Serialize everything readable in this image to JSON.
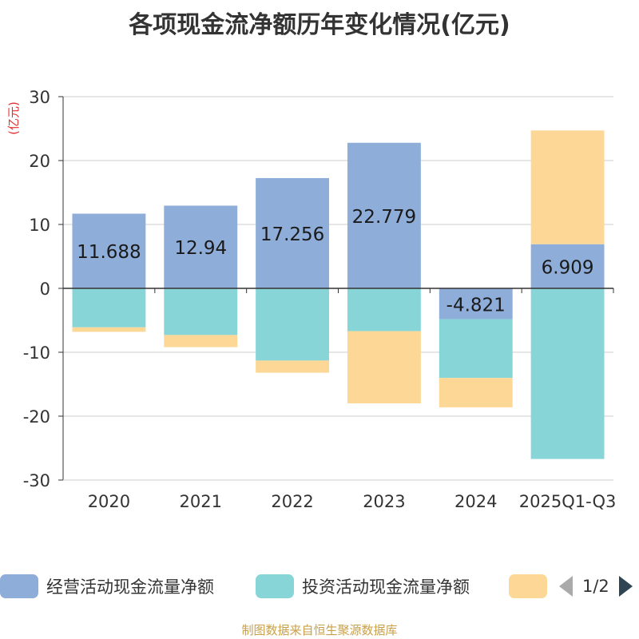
{
  "title": "各项现金流净额历年变化情况(亿元)",
  "source": "制图数据来自恒生聚源数据库",
  "legend": {
    "items": [
      {
        "label": "经营活动现金流量净额",
        "color": "#8eadd9"
      },
      {
        "label": "投资活动现金流量净额",
        "color": "#88d5d8"
      },
      {
        "label": "",
        "color": "#fdd796"
      }
    ],
    "page": "1/2"
  },
  "chart_data": {
    "type": "bar",
    "stacked": true,
    "ylabel": "(亿元)",
    "ylim": [
      -30,
      30
    ],
    "yticks": [
      -30,
      -20,
      -10,
      0,
      10,
      20,
      30
    ],
    "categories": [
      "2020",
      "2021",
      "2022",
      "2023",
      "2024",
      "2025Q1-Q3"
    ],
    "series": [
      {
        "name": "经营活动现金流量净额",
        "color": "#8eadd9",
        "values": [
          11.688,
          12.94,
          17.256,
          22.779,
          -4.821,
          6.909
        ],
        "labels": [
          "11.688",
          "12.94",
          "17.256",
          "22.779",
          "-4.821",
          "6.909"
        ]
      },
      {
        "name": "投资活动现金流量净额",
        "color": "#88d5d8",
        "values": [
          -6.1,
          -7.3,
          -11.3,
          -6.7,
          -9.2,
          -26.7
        ]
      },
      {
        "name": "",
        "color": "#fdd796",
        "values": [
          -0.7,
          -1.9,
          -1.9,
          -11.3,
          -4.6,
          17.8
        ]
      }
    ]
  }
}
